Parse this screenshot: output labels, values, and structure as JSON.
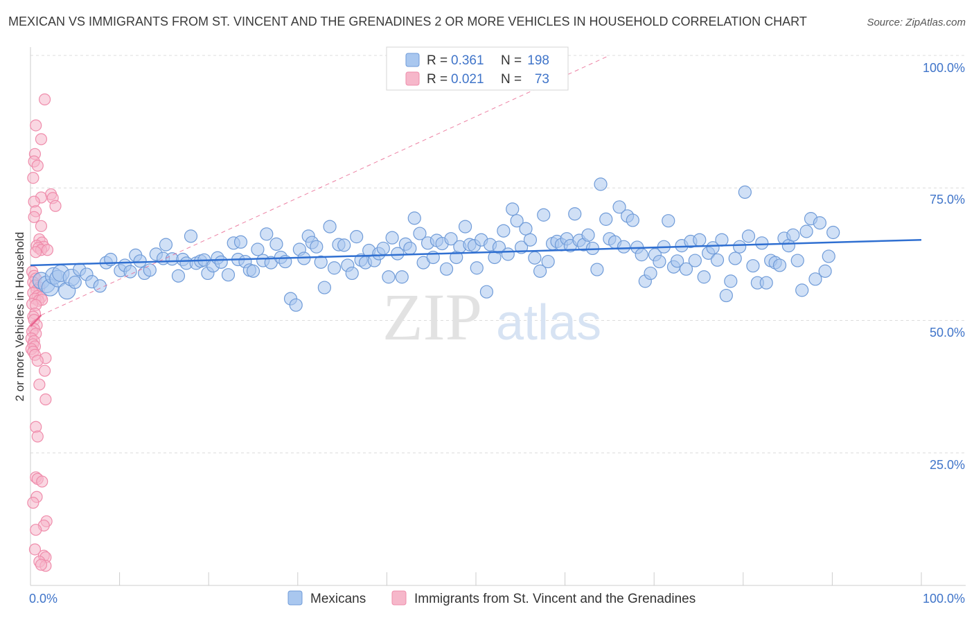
{
  "title": "MEXICAN VS IMMIGRANTS FROM ST. VINCENT AND THE GRENADINES 2 OR MORE VEHICLES IN HOUSEHOLD CORRELATION CHART",
  "source": "Source: ZipAtlas.com",
  "watermark": {
    "zip": "ZIP",
    "atlas": "atlas"
  },
  "colors": {
    "blue_fill": "#a9c7ef",
    "blue_stroke": "#6f9bd8",
    "blue_line": "#2f6fd1",
    "pink_fill": "#f6b7ca",
    "pink_stroke": "#ef8cab",
    "pink_line": "#e8628d",
    "tick_text": "#3f74c9",
    "grid": "#dcdcdc"
  },
  "legend": {
    "rows": [
      {
        "r_label": "R =",
        "r_value": "0.361",
        "n_label": "N =",
        "n_value": "198"
      },
      {
        "r_label": "R =",
        "r_value": "0.021",
        "n_label": "N =",
        "n_value": "73"
      }
    ]
  },
  "bottom_legend": [
    "Mexicans",
    "Immigrants from St. Vincent and the Grenadines"
  ],
  "chart_data": {
    "type": "scatter",
    "title": "MEXICAN VS IMMIGRANTS FROM ST. VINCENT AND THE GRENADINES 2 OR MORE VEHICLES IN HOUSEHOLD CORRELATION CHART",
    "xlabel": "",
    "ylabel": "2 or more Vehicles in Household",
    "xlim": [
      0,
      100
    ],
    "ylim": [
      0,
      100
    ],
    "x_tick_labels": [
      "0.0%",
      "100.0%"
    ],
    "y_tick_labels": [
      "25.0%",
      "50.0%",
      "75.0%",
      "100.0%"
    ],
    "y_ticks": [
      25,
      50,
      75,
      100
    ],
    "grid": true,
    "legend_position": "top-center",
    "series": [
      {
        "name": "Mexicans",
        "R": 0.361,
        "N": 198,
        "trend": {
          "x": [
            0,
            100
          ],
          "y": [
            60.4,
            65.2
          ]
        },
        "points": [
          [
            1.2,
            57.5
          ],
          [
            1.8,
            56.8
          ],
          [
            2.2,
            56.2
          ],
          [
            2.6,
            58.4
          ],
          [
            3.1,
            57.9
          ],
          [
            3.4,
            58.9
          ],
          [
            4.1,
            55.6
          ],
          [
            4.6,
            58.1
          ],
          [
            5.0,
            57.2
          ],
          [
            5.5,
            59.6
          ],
          [
            6.3,
            58.7
          ],
          [
            6.9,
            57.3
          ],
          [
            7.8,
            56.5
          ],
          [
            8.5,
            60.9
          ],
          [
            9.0,
            61.5
          ],
          [
            10.1,
            59.4
          ],
          [
            10.6,
            60.4
          ],
          [
            11.2,
            59.2
          ],
          [
            11.8,
            62.3
          ],
          [
            12.3,
            61.2
          ],
          [
            12.8,
            58.9
          ],
          [
            13.4,
            59.5
          ],
          [
            14.1,
            62.5
          ],
          [
            14.9,
            61.7
          ],
          [
            15.2,
            64.3
          ],
          [
            15.9,
            61.6
          ],
          [
            16.6,
            58.4
          ],
          [
            17.1,
            61.5
          ],
          [
            17.5,
            60.8
          ],
          [
            18.0,
            65.9
          ],
          [
            18.6,
            60.8
          ],
          [
            19.1,
            61.2
          ],
          [
            19.5,
            61.4
          ],
          [
            19.9,
            58.9
          ],
          [
            20.5,
            60.3
          ],
          [
            21.0,
            61.8
          ],
          [
            21.4,
            61.0
          ],
          [
            22.2,
            58.6
          ],
          [
            22.8,
            64.6
          ],
          [
            23.3,
            61.5
          ],
          [
            23.6,
            64.8
          ],
          [
            24.1,
            61.1
          ],
          [
            24.6,
            59.5
          ],
          [
            25.0,
            59.3
          ],
          [
            25.5,
            63.4
          ],
          [
            26.1,
            61.3
          ],
          [
            26.5,
            66.3
          ],
          [
            27.0,
            60.9
          ],
          [
            27.6,
            64.4
          ],
          [
            28.1,
            61.9
          ],
          [
            28.6,
            61.1
          ],
          [
            29.2,
            54.1
          ],
          [
            29.8,
            52.9
          ],
          [
            30.2,
            63.4
          ],
          [
            30.7,
            61.7
          ],
          [
            31.2,
            65.9
          ],
          [
            31.6,
            64.7
          ],
          [
            32.1,
            63.9
          ],
          [
            32.6,
            61.0
          ],
          [
            33.0,
            56.2
          ],
          [
            33.6,
            67.7
          ],
          [
            34.1,
            59.9
          ],
          [
            34.6,
            64.3
          ],
          [
            35.2,
            64.2
          ],
          [
            35.6,
            60.4
          ],
          [
            36.1,
            58.9
          ],
          [
            36.6,
            65.8
          ],
          [
            37.1,
            61.4
          ],
          [
            37.6,
            60.9
          ],
          [
            38.0,
            63.2
          ],
          [
            38.6,
            61.3
          ],
          [
            39.1,
            62.6
          ],
          [
            39.6,
            63.6
          ],
          [
            40.2,
            58.2
          ],
          [
            40.6,
            65.6
          ],
          [
            41.2,
            62.6
          ],
          [
            41.7,
            58.2
          ],
          [
            42.1,
            64.4
          ],
          [
            42.6,
            63.6
          ],
          [
            43.1,
            69.3
          ],
          [
            43.7,
            66.4
          ],
          [
            44.1,
            60.9
          ],
          [
            44.6,
            64.6
          ],
          [
            45.2,
            61.9
          ],
          [
            45.6,
            65.1
          ],
          [
            46.2,
            64.5
          ],
          [
            46.7,
            59.7
          ],
          [
            47.2,
            65.4
          ],
          [
            47.8,
            61.9
          ],
          [
            48.2,
            63.9
          ],
          [
            48.8,
            67.7
          ],
          [
            49.3,
            64.3
          ],
          [
            49.8,
            64.1
          ],
          [
            50.1,
            59.9
          ],
          [
            50.6,
            65.2
          ],
          [
            51.2,
            55.4
          ],
          [
            51.6,
            64.3
          ],
          [
            52.1,
            61.9
          ],
          [
            52.6,
            63.8
          ],
          [
            53.1,
            66.9
          ],
          [
            53.6,
            62.5
          ],
          [
            54.1,
            71.0
          ],
          [
            54.6,
            68.8
          ],
          [
            55.1,
            63.8
          ],
          [
            55.6,
            67.3
          ],
          [
            56.1,
            65.2
          ],
          [
            56.6,
            61.8
          ],
          [
            57.2,
            59.3
          ],
          [
            57.6,
            69.9
          ],
          [
            58.1,
            61.1
          ],
          [
            58.6,
            64.5
          ],
          [
            59.1,
            64.9
          ],
          [
            59.6,
            64.3
          ],
          [
            60.2,
            65.4
          ],
          [
            60.6,
            64.1
          ],
          [
            61.1,
            70.1
          ],
          [
            61.6,
            65.1
          ],
          [
            62.1,
            64.3
          ],
          [
            62.6,
            66.1
          ],
          [
            63.1,
            63.6
          ],
          [
            63.6,
            59.6
          ],
          [
            64.0,
            75.7
          ],
          [
            64.6,
            69.1
          ],
          [
            65.0,
            65.4
          ],
          [
            65.6,
            64.8
          ],
          [
            66.1,
            71.4
          ],
          [
            66.6,
            63.9
          ],
          [
            67.0,
            69.7
          ],
          [
            67.6,
            68.9
          ],
          [
            68.1,
            63.8
          ],
          [
            68.6,
            62.4
          ],
          [
            69.0,
            57.4
          ],
          [
            69.6,
            58.9
          ],
          [
            70.1,
            62.4
          ],
          [
            70.6,
            61.1
          ],
          [
            71.1,
            63.9
          ],
          [
            71.6,
            68.8
          ],
          [
            72.2,
            60.1
          ],
          [
            72.6,
            61.2
          ],
          [
            73.1,
            64.1
          ],
          [
            73.6,
            59.7
          ],
          [
            74.1,
            64.9
          ],
          [
            74.6,
            61.3
          ],
          [
            75.1,
            65.2
          ],
          [
            75.6,
            58.2
          ],
          [
            76.1,
            62.7
          ],
          [
            76.6,
            63.7
          ],
          [
            77.1,
            61.4
          ],
          [
            77.6,
            65.2
          ],
          [
            78.1,
            54.7
          ],
          [
            78.6,
            57.4
          ],
          [
            79.1,
            61.7
          ],
          [
            79.6,
            63.9
          ],
          [
            80.2,
            74.2
          ],
          [
            80.6,
            65.9
          ],
          [
            81.1,
            60.3
          ],
          [
            81.6,
            57.1
          ],
          [
            82.1,
            64.6
          ],
          [
            82.6,
            57.1
          ],
          [
            83.1,
            61.3
          ],
          [
            83.6,
            60.9
          ],
          [
            84.1,
            60.4
          ],
          [
            84.6,
            65.5
          ],
          [
            85.1,
            64.1
          ],
          [
            85.6,
            66.1
          ],
          [
            86.1,
            61.3
          ],
          [
            86.6,
            55.7
          ],
          [
            87.1,
            66.8
          ],
          [
            87.6,
            69.2
          ],
          [
            88.1,
            57.8
          ],
          [
            88.6,
            68.4
          ],
          [
            89.2,
            59.3
          ],
          [
            89.6,
            62.1
          ],
          [
            90.1,
            66.6
          ]
        ]
      },
      {
        "name": "Immigrants from St. Vincent and the Grenadines",
        "R": 0.021,
        "N": 73,
        "trend": {
          "x": [
            0,
            1.2
          ],
          "y": [
            48.9,
            51.0
          ]
        },
        "trend_extension": {
          "x": [
            1.2,
            65.0
          ],
          "y": [
            51.0,
            100.0
          ]
        },
        "points": [
          [
            1.6,
            91.7
          ],
          [
            0.6,
            86.8
          ],
          [
            1.2,
            84.2
          ],
          [
            0.5,
            81.4
          ],
          [
            0.4,
            80.0
          ],
          [
            0.8,
            79.2
          ],
          [
            0.3,
            76.9
          ],
          [
            2.3,
            73.8
          ],
          [
            1.2,
            73.2
          ],
          [
            2.5,
            73.1
          ],
          [
            0.4,
            72.4
          ],
          [
            2.8,
            71.6
          ],
          [
            0.6,
            70.6
          ],
          [
            0.4,
            69.5
          ],
          [
            1.2,
            67.8
          ],
          [
            1.0,
            65.3
          ],
          [
            1.3,
            64.7
          ],
          [
            0.7,
            64.1
          ],
          [
            1.5,
            63.9
          ],
          [
            0.9,
            63.7
          ],
          [
            1.2,
            63.3
          ],
          [
            1.9,
            63.3
          ],
          [
            0.6,
            62.9
          ],
          [
            0.2,
            59.2
          ],
          [
            0.4,
            58.4
          ],
          [
            0.6,
            57.9
          ],
          [
            0.3,
            57.2
          ],
          [
            0.5,
            56.6
          ],
          [
            1.0,
            56.2
          ],
          [
            0.7,
            55.7
          ],
          [
            0.3,
            55.2
          ],
          [
            0.8,
            54.6
          ],
          [
            1.2,
            54.4
          ],
          [
            0.5,
            54.1
          ],
          [
            0.9,
            53.7
          ],
          [
            1.3,
            53.9
          ],
          [
            0.2,
            53.1
          ],
          [
            0.6,
            52.9
          ],
          [
            0.5,
            51.3
          ],
          [
            0.3,
            50.7
          ],
          [
            0.4,
            50.1
          ],
          [
            0.7,
            49.1
          ],
          [
            0.4,
            48.4
          ],
          [
            0.2,
            47.9
          ],
          [
            0.6,
            47.5
          ],
          [
            0.1,
            46.6
          ],
          [
            0.4,
            46.1
          ],
          [
            0.3,
            45.5
          ],
          [
            0.5,
            45.1
          ],
          [
            0.1,
            44.6
          ],
          [
            0.3,
            44.1
          ],
          [
            0.5,
            43.5
          ],
          [
            1.7,
            42.9
          ],
          [
            0.8,
            42.4
          ],
          [
            1.6,
            40.5
          ],
          [
            1.0,
            37.9
          ],
          [
            1.7,
            35.1
          ],
          [
            0.6,
            29.9
          ],
          [
            0.8,
            28.1
          ],
          [
            0.6,
            20.4
          ],
          [
            0.8,
            20.1
          ],
          [
            1.3,
            19.6
          ],
          [
            0.7,
            16.7
          ],
          [
            0.3,
            15.6
          ],
          [
            1.8,
            12.1
          ],
          [
            1.5,
            11.3
          ],
          [
            0.6,
            10.5
          ],
          [
            0.5,
            6.8
          ],
          [
            1.5,
            5.6
          ],
          [
            1.7,
            5.3
          ],
          [
            1.0,
            4.5
          ],
          [
            1.7,
            3.7
          ],
          [
            1.2,
            3.9
          ]
        ]
      }
    ]
  }
}
